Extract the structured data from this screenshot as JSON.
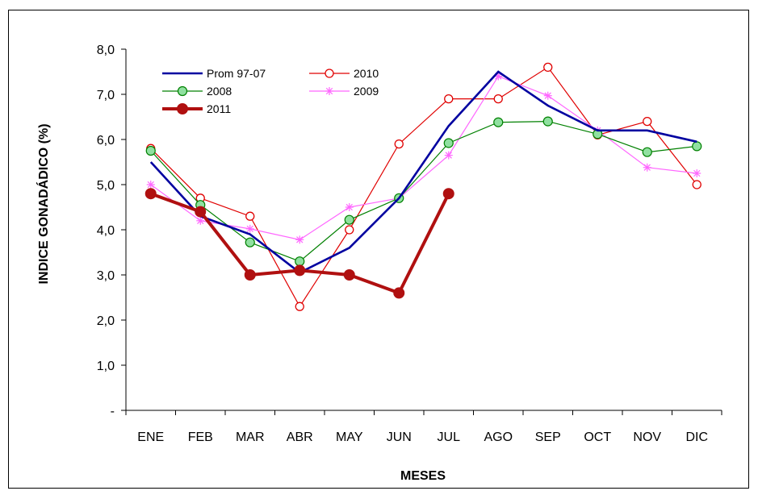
{
  "chart_data": {
    "type": "line",
    "title": "",
    "xlabel": "MESES",
    "ylabel": "INDICE  GONADÁDICO  (%)",
    "categories": [
      "ENE",
      "FEB",
      "MAR",
      "ABR",
      "MAY",
      "JUN",
      "JUL",
      "AGO",
      "SEP",
      "OCT",
      "NOV",
      "DIC"
    ],
    "ylim": [
      0,
      8
    ],
    "ytick_values": [
      0,
      1,
      2,
      3,
      4,
      5,
      6,
      7,
      8
    ],
    "ytick_labels": [
      "-",
      "1,0",
      "2,0",
      "3,0",
      "4,0",
      "5,0",
      "6,0",
      "7,0",
      "8,0"
    ],
    "grid": false,
    "legend_position": "top-left",
    "series": [
      {
        "name": "Prom 97-07",
        "color": "#0000a0",
        "marker": "none",
        "width": "thick",
        "values": [
          5.5,
          4.3,
          3.9,
          3.05,
          3.6,
          4.7,
          6.3,
          7.5,
          6.75,
          6.2,
          6.2,
          5.95
        ]
      },
      {
        "name": "2010",
        "color": "#e00000",
        "marker": "open-circle",
        "width": "thin",
        "values": [
          5.8,
          4.7,
          4.3,
          2.3,
          4.0,
          5.9,
          6.9,
          6.9,
          7.6,
          6.1,
          6.4,
          5.0
        ]
      },
      {
        "name": "2008",
        "color": "#008000",
        "marker": "filled-circle-light",
        "marker_fill": "#90e0a0",
        "width": "thin",
        "values": [
          5.75,
          4.55,
          3.72,
          3.3,
          4.22,
          4.7,
          5.92,
          6.38,
          6.4,
          6.12,
          5.72,
          5.85
        ]
      },
      {
        "name": "2009",
        "color": "#ff66ff",
        "marker": "star",
        "width": "thin",
        "values": [
          5.0,
          4.2,
          4.02,
          3.78,
          4.5,
          4.7,
          5.65,
          7.4,
          6.97,
          6.2,
          5.38,
          5.25
        ]
      },
      {
        "name": "2011",
        "color": "#b01010",
        "marker": "filled-circle",
        "width": "thickest",
        "values": [
          4.8,
          4.4,
          3.0,
          3.1,
          3.0,
          2.6,
          4.8,
          null,
          null,
          null,
          null,
          null
        ]
      }
    ]
  }
}
